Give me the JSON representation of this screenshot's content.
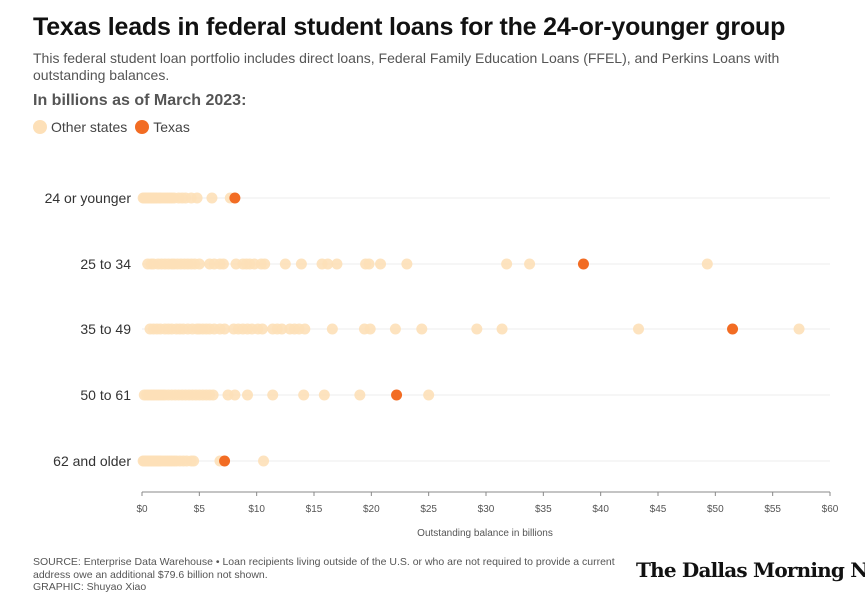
{
  "title": "Texas leads in federal student loans for the 24-or-younger group",
  "subtitle": "This federal student loan portfolio includes direct loans, Federal Family Education Loans (FFEL), and Perkins Loans with outstanding balances.",
  "unit_label": "In billions as of March 2023:",
  "legend": [
    {
      "label": "Other states",
      "color": "#fde0b8"
    },
    {
      "label": "Texas",
      "color": "#f26c23"
    }
  ],
  "source": "SOURCE: Enterprise Data Warehouse • Loan recipients living outside of the U.S. or who are not required to provide a current address owe an additional $79.6 billion not shown.",
  "credit": "GRAPHIC: Shuyao Xiao",
  "logo_text": "The Dallas Morning News",
  "chart_data": {
    "type": "scatter",
    "xlabel": "Outstanding balance in billions",
    "xlim": [
      0,
      60
    ],
    "x_ticks": [
      0,
      5,
      10,
      15,
      20,
      25,
      30,
      35,
      40,
      45,
      50,
      55,
      60
    ],
    "x_tick_labels": [
      "$0",
      "$5",
      "$10",
      "$15",
      "$20",
      "$25",
      "$30",
      "$35",
      "$40",
      "$45",
      "$50",
      "$55",
      "$60"
    ],
    "categories": [
      "24 or younger",
      "25 to 34",
      "35 to 49",
      "50 to 61",
      "62 and older"
    ],
    "series": [
      {
        "name": "Other states",
        "values": [
          [
            0.1,
            0.2,
            0.3,
            0.4,
            0.5,
            0.6,
            0.7,
            0.8,
            0.9,
            1.0,
            1.1,
            1.2,
            1.3,
            1.5,
            1.6,
            1.8,
            2.0,
            2.2,
            2.4,
            2.6,
            2.8,
            3.2,
            3.5,
            3.8,
            4.3,
            4.8,
            6.1,
            7.7
          ],
          [
            0.5,
            0.8,
            1.0,
            1.4,
            1.7,
            2.0,
            2.3,
            2.6,
            2.8,
            3.1,
            3.4,
            3.7,
            4.0,
            4.3,
            4.6,
            5.0,
            5.9,
            6.3,
            6.8,
            7.1,
            8.2,
            8.8,
            9.1,
            9.4,
            9.8,
            10.4,
            10.7,
            12.5,
            13.9,
            15.7,
            16.2,
            17.0,
            19.5,
            19.8,
            20.8,
            23.1,
            31.8,
            33.8,
            49.3
          ],
          [
            0.7,
            1.0,
            1.3,
            1.6,
            2.0,
            2.3,
            2.6,
            3.0,
            3.3,
            3.6,
            4.0,
            4.4,
            4.8,
            5.0,
            5.3,
            5.6,
            5.9,
            6.3,
            6.8,
            7.2,
            8.0,
            8.4,
            8.8,
            9.2,
            9.6,
            10.1,
            10.5,
            11.4,
            11.8,
            12.2,
            12.9,
            13.3,
            13.7,
            14.2,
            16.6,
            19.4,
            19.9,
            22.1,
            24.4,
            29.2,
            31.4,
            43.3,
            57.3
          ],
          [
            0.2,
            0.4,
            0.6,
            0.8,
            1.0,
            1.2,
            1.4,
            1.6,
            1.8,
            2.0,
            2.3,
            2.6,
            2.9,
            3.2,
            3.5,
            3.8,
            4.1,
            4.4,
            4.7,
            5.0,
            5.3,
            5.6,
            5.9,
            6.2,
            7.5,
            8.1,
            9.2,
            11.4,
            14.1,
            15.9,
            19.0,
            25.0
          ],
          [
            0.1,
            0.2,
            0.3,
            0.4,
            0.5,
            0.6,
            0.7,
            0.8,
            0.9,
            1.0,
            1.1,
            1.2,
            1.3,
            1.4,
            1.5,
            1.6,
            1.8,
            2.0,
            2.2,
            2.4,
            2.6,
            2.8,
            3.0,
            3.3,
            3.6,
            3.9,
            4.3,
            4.5,
            6.8,
            10.6
          ]
        ]
      },
      {
        "name": "Texas",
        "values": [
          8.1,
          38.5,
          51.5,
          22.2,
          7.2
        ]
      }
    ]
  }
}
